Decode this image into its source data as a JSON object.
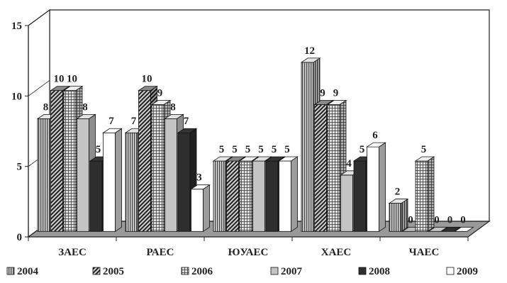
{
  "chart_data": {
    "type": "bar",
    "categories": [
      "ЗАЕС",
      "РАЕС",
      "ЮУАЕС",
      "ХАЕС",
      "ЧАЕС"
    ],
    "y_ticks": [
      "0",
      "5",
      "10",
      "15"
    ],
    "ylim": [
      0,
      15
    ],
    "grid": false,
    "legend_position": "bottom",
    "series": [
      {
        "name": "2004",
        "values": [
          8,
          7,
          5,
          12,
          2
        ],
        "data_labels": [
          "8",
          "7",
          "5",
          "12",
          "2"
        ],
        "color": "#c8c8c8",
        "pattern": "vertical-stripes"
      },
      {
        "name": "2005",
        "values": [
          10,
          10,
          5,
          9,
          0
        ],
        "data_labels": [
          "10",
          "10",
          "5",
          "9",
          "0"
        ],
        "color": "#5a5a5a",
        "pattern": "diagonal-hatch"
      },
      {
        "name": "2006",
        "values": [
          10,
          9,
          5,
          9,
          5
        ],
        "data_labels": [
          "10",
          "9",
          "5",
          "9",
          "5"
        ],
        "color": "#bdbdbd",
        "pattern": "grid"
      },
      {
        "name": "2007",
        "values": [
          8,
          8,
          5,
          4,
          0
        ],
        "data_labels": [
          "8",
          "8",
          "5",
          "4",
          "0"
        ],
        "color": "#c4c4c4",
        "pattern": "solid"
      },
      {
        "name": "2008",
        "values": [
          5,
          7,
          5,
          5,
          0
        ],
        "data_labels": [
          "5",
          "7",
          "5",
          "5",
          "0"
        ],
        "color": "#2e2e2e",
        "pattern": "solid"
      },
      {
        "name": "2009",
        "values": [
          7,
          3,
          5,
          6,
          0
        ],
        "data_labels": [
          "7",
          "3",
          "5",
          "6",
          "0"
        ],
        "color": "#ffffff",
        "pattern": "solid"
      }
    ],
    "floor_color": "#9a9a9a",
    "wall_color": "#ffffff"
  }
}
